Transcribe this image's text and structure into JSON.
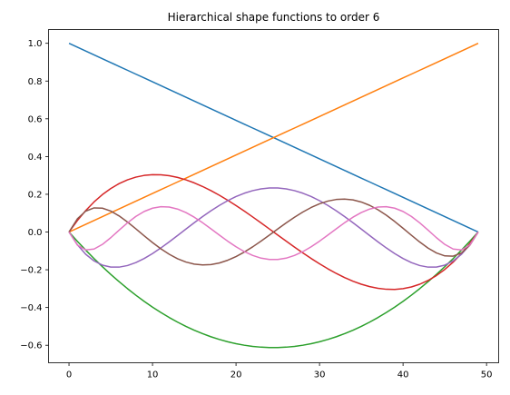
{
  "chart_data": {
    "type": "line",
    "title": "Hierarchical shape functions to order 6",
    "xlabel": "",
    "ylabel": "",
    "xlim": [
      -2.45,
      51.45
    ],
    "ylim": [
      -0.6928,
      1.0731
    ],
    "x_ticks": [
      0,
      10,
      20,
      30,
      40,
      50
    ],
    "y_ticks": [
      -0.6,
      -0.4,
      -0.2,
      0.0,
      0.2,
      0.4,
      0.6,
      0.8,
      1.0
    ],
    "x_tick_labels": [
      "0",
      "10",
      "20",
      "30",
      "40",
      "50"
    ],
    "y_tick_labels": [
      "−0.6",
      "−0.4",
      "−0.2",
      "0.0",
      "0.2",
      "0.4",
      "0.6",
      "0.8",
      "1.0"
    ],
    "grid": false,
    "legend": "none",
    "num_points": 50,
    "x_range": [
      0,
      49
    ],
    "series": [
      {
        "color": "#1f77b4",
        "order": 0,
        "description": "linear decreasing from 1.0 to 0.0"
      },
      {
        "color": "#ff7f0e",
        "order": 1,
        "description": "linear increasing from 0.0 to 1.0"
      },
      {
        "color": "#2ca02c",
        "order": 2,
        "min": -0.612
      },
      {
        "color": "#d62728",
        "order": 3,
        "max": 0.306,
        "min": -0.306
      },
      {
        "color": "#9467bd",
        "order": 4,
        "max": 0.234,
        "min": -0.186
      },
      {
        "color": "#8c564b",
        "order": 5,
        "max": 0.176,
        "min": -0.172
      },
      {
        "color": "#e377c2",
        "order": 6,
        "max": 0.136,
        "min": -0.145
      }
    ]
  }
}
